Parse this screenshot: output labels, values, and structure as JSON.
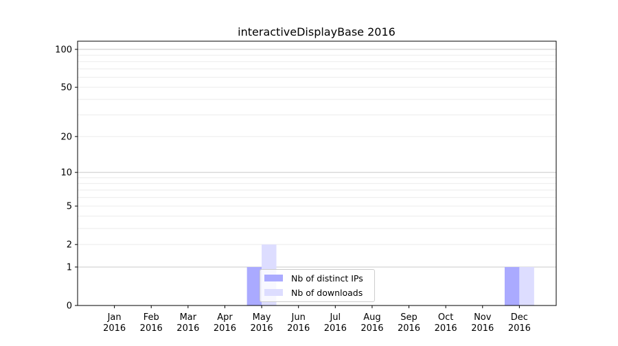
{
  "chart_data": {
    "type": "bar",
    "title": "interactiveDisplayBase 2016",
    "xlabel": "",
    "ylabel": "",
    "categories": [
      "Jan\n2016",
      "Feb\n2016",
      "Mar\n2016",
      "Apr\n2016",
      "May\n2016",
      "Jun\n2016",
      "Jul\n2016",
      "Aug\n2016",
      "Sep\n2016",
      "Oct\n2016",
      "Nov\n2016",
      "Dec\n2016"
    ],
    "series": [
      {
        "name": "Nb of distinct IPs",
        "color": "#aaaaff",
        "values": [
          0,
          0,
          0,
          0,
          1,
          0,
          0,
          0,
          0,
          0,
          0,
          1
        ]
      },
      {
        "name": "Nb of downloads",
        "color": "#ddddff",
        "values": [
          0,
          0,
          0,
          0,
          2,
          0,
          0,
          0,
          0,
          0,
          0,
          1
        ]
      }
    ],
    "y_scale": "log(1+y)",
    "ylim": [
      0,
      116
    ],
    "y_ticks": [
      0,
      1,
      2,
      5,
      10,
      20,
      50,
      100
    ],
    "grid": true,
    "legend_position": "lower-center"
  }
}
